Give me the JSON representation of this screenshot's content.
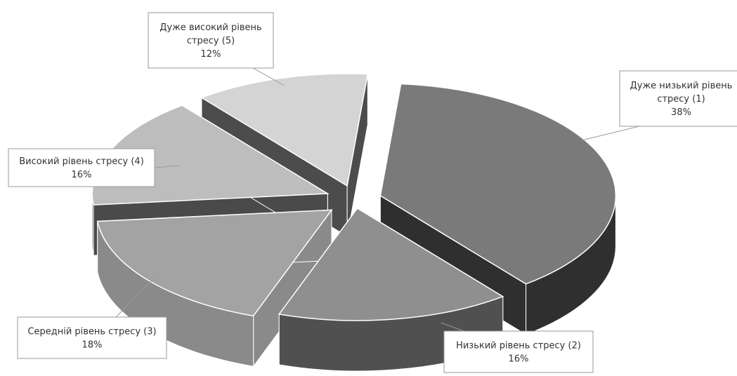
{
  "chart_data": {
    "type": "pie",
    "style": "3d-exploded",
    "categories": [
      "Дуже низький рівень стресу (1)",
      "Низький рівень стресу (2)",
      "Середній рівень стресу (3)",
      "Високий рівень стресу (4)",
      "Дуже високий рівень стресу (5)"
    ],
    "values": [
      38,
      16,
      18,
      16,
      12
    ],
    "unit": "%",
    "data_labels": [
      {
        "lines": [
          "Дуже низький рівень",
          "стресу (1)"
        ],
        "value": "38%"
      },
      {
        "lines": [
          "Низький рівень стресу (2)"
        ],
        "value": "16%"
      },
      {
        "lines": [
          "Середній рівень стресу (3)"
        ],
        "value": "18%"
      },
      {
        "lines": [
          "Високий рівень стресу (4)"
        ],
        "value": "16%"
      },
      {
        "lines": [
          "Дуже високий рівень",
          "стресу (5)"
        ],
        "value": "12%"
      }
    ],
    "slice_colors": [
      "#7a7a7a",
      "#8f8f8f",
      "#a3a3a3",
      "#bdbdbd",
      "#d4d4d4"
    ],
    "side_colors": [
      "#2f2f2f",
      "#505050",
      "#8a8a8a",
      "#4a4a4a",
      "#4c4c4c"
    ],
    "title": "",
    "legend": "none"
  }
}
